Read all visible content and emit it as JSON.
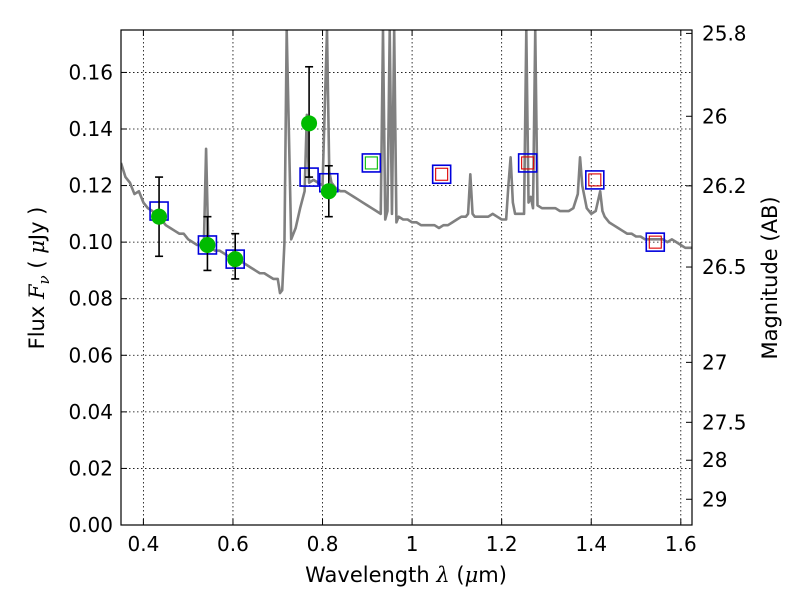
{
  "chart_data": {
    "type": "scatter",
    "xlabel": "Wavelength",
    "xlabel_symbol": "λ",
    "xlabel_unit_open": "(",
    "xlabel_unit_mu": "μ",
    "xlabel_unit_rest": "m)",
    "ylabel_prefix": "Flux",
    "ylabel_symbol": "F",
    "ylabel_sub": "ν",
    "ylabel_unit_open": "(",
    "ylabel_unit_mu": "μ",
    "ylabel_unit_rest": "Jy )",
    "y2label": "Magnitude (AB)",
    "xlim": [
      0.35,
      1.625
    ],
    "ylim": [
      0.0,
      0.175
    ],
    "xticks": [
      0.4,
      0.6,
      0.8,
      1.0,
      1.2,
      1.4,
      1.6
    ],
    "xtick_labels": [
      "0.4",
      "0.6",
      "0.8",
      "1",
      "1.2",
      "1.4",
      "1.6"
    ],
    "yticks": [
      0.0,
      0.02,
      0.04,
      0.06,
      0.08,
      0.1,
      0.12,
      0.14,
      0.16
    ],
    "ytick_labels": [
      "0.00",
      "0.02",
      "0.04",
      "0.06",
      "0.08",
      "0.10",
      "0.12",
      "0.14",
      "0.16"
    ],
    "y2ticks": [
      {
        "flux": 0.1738,
        "label": "25.8"
      },
      {
        "flux": 0.1445,
        "label": "26"
      },
      {
        "flux": 0.1199,
        "label": "26.2"
      },
      {
        "flux": 0.0912,
        "label": "26.5"
      },
      {
        "flux": 0.0575,
        "label": "27"
      },
      {
        "flux": 0.0363,
        "label": "27.5"
      },
      {
        "flux": 0.0229,
        "label": "28"
      },
      {
        "flux": 0.0091,
        "label": "29"
      }
    ],
    "grid": true,
    "colors": {
      "sed": "#808080",
      "observed": "#00bb00",
      "model_box": "#0000dd",
      "upper_red": "#dd0000",
      "upper_green": "#00bb00",
      "errorbar": "#000000"
    },
    "sed_template": [
      [
        0.35,
        0.128
      ],
      [
        0.36,
        0.123
      ],
      [
        0.37,
        0.121
      ],
      [
        0.38,
        0.117
      ],
      [
        0.39,
        0.118
      ],
      [
        0.4,
        0.114
      ],
      [
        0.41,
        0.112
      ],
      [
        0.42,
        0.111
      ],
      [
        0.43,
        0.109
      ],
      [
        0.44,
        0.108
      ],
      [
        0.45,
        0.106
      ],
      [
        0.46,
        0.105
      ],
      [
        0.47,
        0.104
      ],
      [
        0.48,
        0.103
      ],
      [
        0.49,
        0.103
      ],
      [
        0.5,
        0.101
      ],
      [
        0.51,
        0.1
      ],
      [
        0.52,
        0.099
      ],
      [
        0.53,
        0.099
      ],
      [
        0.535,
        0.099
      ],
      [
        0.54,
        0.133
      ],
      [
        0.545,
        0.099
      ],
      [
        0.55,
        0.098
      ],
      [
        0.56,
        0.097
      ],
      [
        0.57,
        0.097
      ],
      [
        0.58,
        0.096
      ],
      [
        0.59,
        0.095
      ],
      [
        0.6,
        0.094
      ],
      [
        0.61,
        0.094
      ],
      [
        0.62,
        0.093
      ],
      [
        0.63,
        0.092
      ],
      [
        0.64,
        0.091
      ],
      [
        0.65,
        0.09
      ],
      [
        0.66,
        0.089
      ],
      [
        0.67,
        0.089
      ],
      [
        0.68,
        0.088
      ],
      [
        0.69,
        0.087
      ],
      [
        0.7,
        0.087
      ],
      [
        0.705,
        0.082
      ],
      [
        0.71,
        0.083
      ],
      [
        0.715,
        0.1
      ],
      [
        0.72,
        0.175
      ],
      [
        0.73,
        0.101
      ],
      [
        0.74,
        0.105
      ],
      [
        0.75,
        0.112
      ],
      [
        0.76,
        0.118
      ],
      [
        0.765,
        0.145
      ],
      [
        0.77,
        0.121
      ],
      [
        0.78,
        0.122
      ],
      [
        0.79,
        0.121
      ],
      [
        0.8,
        0.12
      ],
      [
        0.81,
        0.175
      ],
      [
        0.815,
        0.125
      ],
      [
        0.82,
        0.121
      ],
      [
        0.83,
        0.119
      ],
      [
        0.84,
        0.118
      ],
      [
        0.85,
        0.118
      ],
      [
        0.86,
        0.117
      ],
      [
        0.87,
        0.116
      ],
      [
        0.88,
        0.115
      ],
      [
        0.89,
        0.114
      ],
      [
        0.9,
        0.113
      ],
      [
        0.91,
        0.112
      ],
      [
        0.92,
        0.111
      ],
      [
        0.93,
        0.11
      ],
      [
        0.935,
        0.175
      ],
      [
        0.94,
        0.108
      ],
      [
        0.945,
        0.111
      ],
      [
        0.95,
        0.175
      ],
      [
        0.955,
        0.11
      ],
      [
        0.96,
        0.175
      ],
      [
        0.965,
        0.107
      ],
      [
        0.97,
        0.109
      ],
      [
        0.98,
        0.108
      ],
      [
        0.99,
        0.108
      ],
      [
        1.0,
        0.107
      ],
      [
        1.01,
        0.107
      ],
      [
        1.02,
        0.106
      ],
      [
        1.03,
        0.106
      ],
      [
        1.04,
        0.106
      ],
      [
        1.05,
        0.106
      ],
      [
        1.06,
        0.105
      ],
      [
        1.07,
        0.106
      ],
      [
        1.08,
        0.106
      ],
      [
        1.09,
        0.107
      ],
      [
        1.1,
        0.108
      ],
      [
        1.11,
        0.109
      ],
      [
        1.12,
        0.109
      ],
      [
        1.125,
        0.11
      ],
      [
        1.13,
        0.124
      ],
      [
        1.135,
        0.11
      ],
      [
        1.14,
        0.109
      ],
      [
        1.15,
        0.109
      ],
      [
        1.16,
        0.109
      ],
      [
        1.17,
        0.109
      ],
      [
        1.18,
        0.11
      ],
      [
        1.19,
        0.109
      ],
      [
        1.2,
        0.108
      ],
      [
        1.21,
        0.108
      ],
      [
        1.215,
        0.12
      ],
      [
        1.22,
        0.13
      ],
      [
        1.225,
        0.114
      ],
      [
        1.23,
        0.11
      ],
      [
        1.24,
        0.11
      ],
      [
        1.25,
        0.11
      ],
      [
        1.255,
        0.175
      ],
      [
        1.26,
        0.114
      ],
      [
        1.265,
        0.116
      ],
      [
        1.27,
        0.112
      ],
      [
        1.275,
        0.175
      ],
      [
        1.28,
        0.113
      ],
      [
        1.29,
        0.112
      ],
      [
        1.3,
        0.112
      ],
      [
        1.31,
        0.112
      ],
      [
        1.32,
        0.112
      ],
      [
        1.33,
        0.111
      ],
      [
        1.34,
        0.111
      ],
      [
        1.35,
        0.111
      ],
      [
        1.36,
        0.112
      ],
      [
        1.37,
        0.117
      ],
      [
        1.375,
        0.13
      ],
      [
        1.38,
        0.12
      ],
      [
        1.39,
        0.112
      ],
      [
        1.4,
        0.11
      ],
      [
        1.41,
        0.111
      ],
      [
        1.42,
        0.118
      ],
      [
        1.425,
        0.111
      ],
      [
        1.43,
        0.109
      ],
      [
        1.44,
        0.107
      ],
      [
        1.45,
        0.106
      ],
      [
        1.46,
        0.105
      ],
      [
        1.47,
        0.104
      ],
      [
        1.48,
        0.103
      ],
      [
        1.49,
        0.103
      ],
      [
        1.5,
        0.102
      ],
      [
        1.51,
        0.102
      ],
      [
        1.52,
        0.101
      ],
      [
        1.53,
        0.101
      ],
      [
        1.54,
        0.101
      ],
      [
        1.55,
        0.101
      ],
      [
        1.56,
        0.101
      ],
      [
        1.57,
        0.1
      ],
      [
        1.58,
        0.101
      ],
      [
        1.59,
        0.1
      ],
      [
        1.6,
        0.099
      ],
      [
        1.61,
        0.098
      ],
      [
        1.62,
        0.098
      ],
      [
        1.625,
        0.098
      ]
    ],
    "observed": [
      {
        "x": 0.435,
        "y": 0.109,
        "yerr_low": 0.095,
        "yerr_high": 0.123
      },
      {
        "x": 0.543,
        "y": 0.099,
        "yerr_low": 0.09,
        "yerr_high": 0.109
      },
      {
        "x": 0.605,
        "y": 0.094,
        "yerr_low": 0.087,
        "yerr_high": 0.103
      },
      {
        "x": 0.77,
        "y": 0.142,
        "yerr_low": 0.123,
        "yerr_high": 0.162
      },
      {
        "x": 0.814,
        "y": 0.118,
        "yerr_low": 0.109,
        "yerr_high": 0.127
      }
    ],
    "model_boxes": [
      {
        "x": 0.435,
        "y": 0.111
      },
      {
        "x": 0.543,
        "y": 0.099
      },
      {
        "x": 0.605,
        "y": 0.094
      },
      {
        "x": 0.77,
        "y": 0.123
      },
      {
        "x": 0.814,
        "y": 0.121
      },
      {
        "x": 0.909,
        "y": 0.128,
        "inner": "green"
      },
      {
        "x": 1.066,
        "y": 0.124,
        "inner": "red"
      },
      {
        "x": 1.258,
        "y": 0.128,
        "inner": "red"
      },
      {
        "x": 1.408,
        "y": 0.122,
        "inner": "red"
      },
      {
        "x": 1.543,
        "y": 0.1,
        "inner": "red"
      }
    ]
  }
}
